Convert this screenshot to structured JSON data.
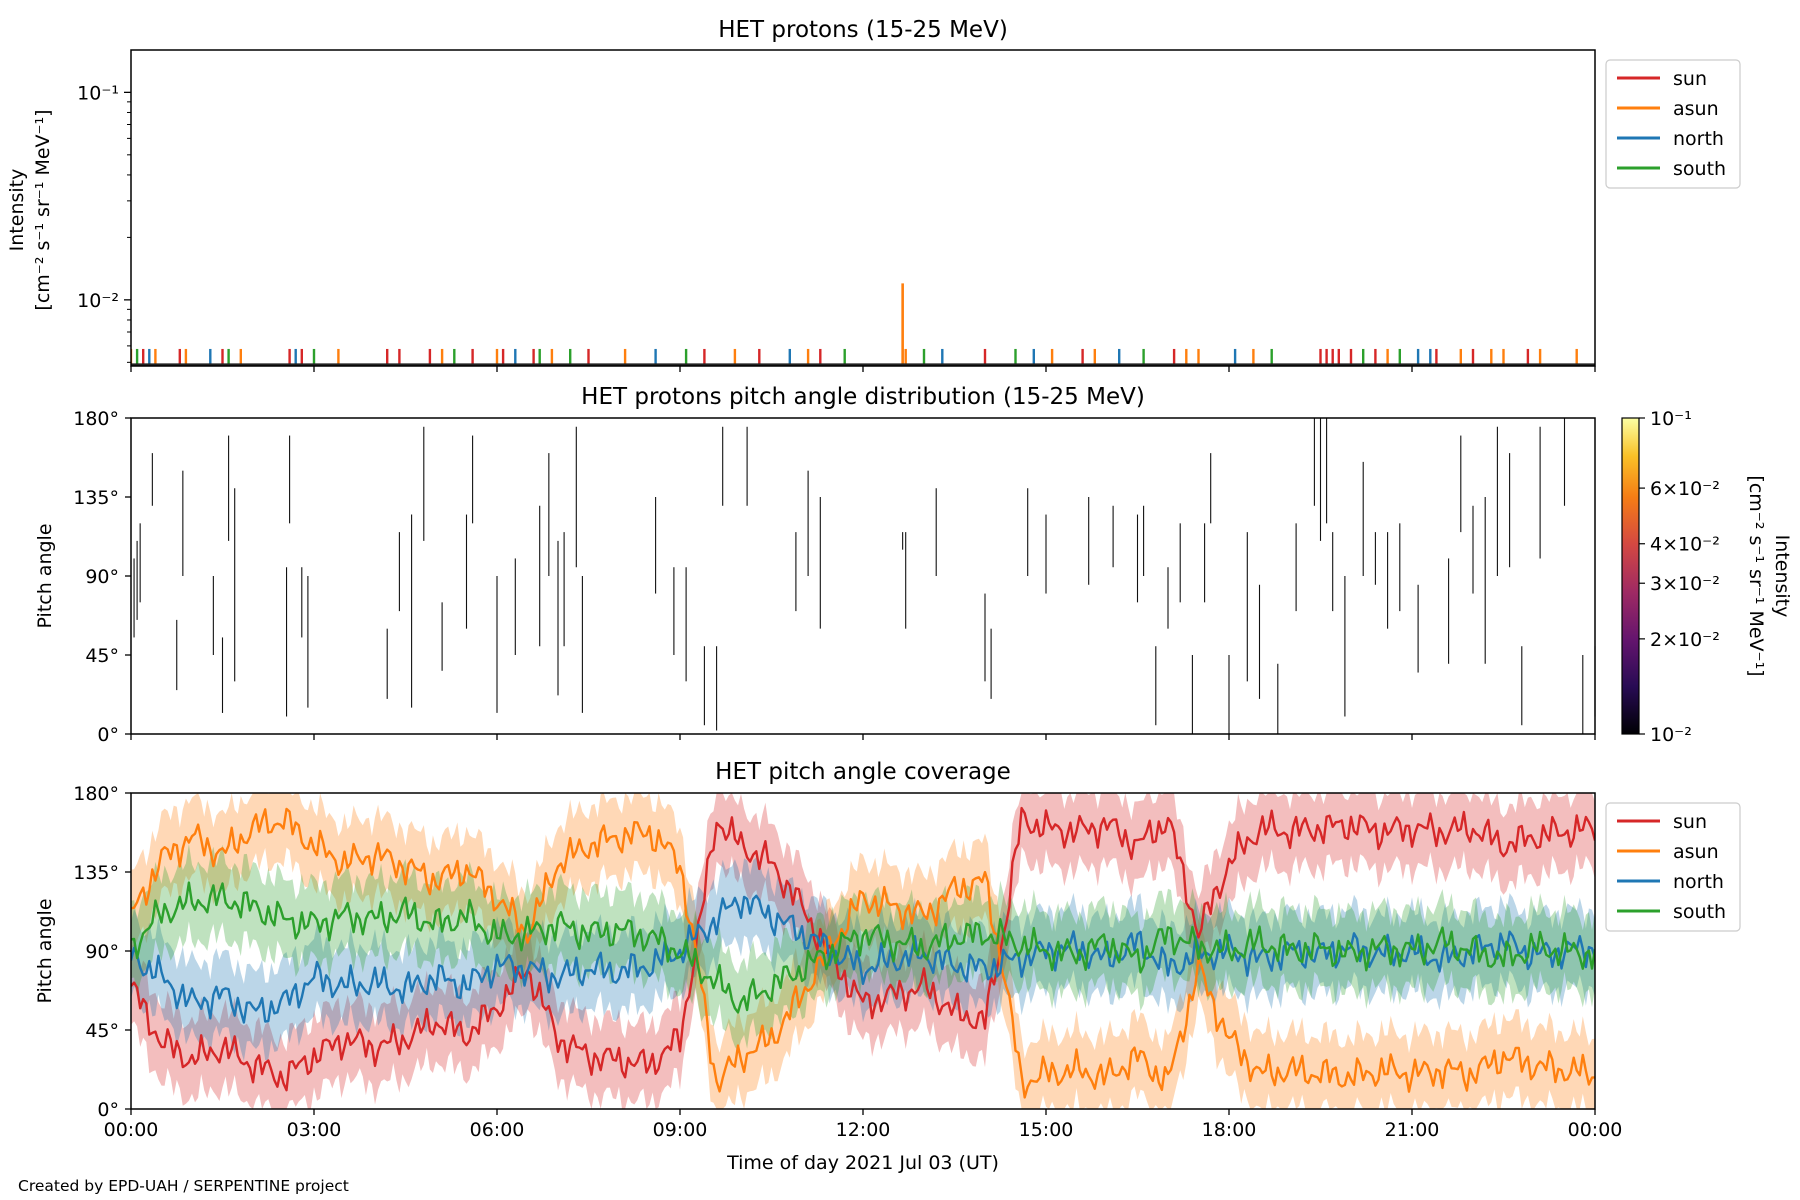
{
  "footer": {
    "credit": "Created by EPD-UAH / SERPENTINE project"
  },
  "colors": {
    "sun": "#d62728",
    "asun": "#ff7f0e",
    "north": "#1f77b4",
    "south": "#2ca02c"
  },
  "chart_data": [
    {
      "type": "line",
      "title": "HET protons (15-25 MeV)",
      "ylabel_line1": "Intensity",
      "ylabel_line2": "[cm⁻² s⁻¹ sr⁻¹ MeV⁻¹]",
      "yscale": "log",
      "ylim": [
        0.0048,
        0.16
      ],
      "ytick_labels": [
        "10⁻²",
        "10⁻¹"
      ],
      "ytick_values": [
        0.01,
        0.1
      ],
      "xlim_hours": [
        0,
        24
      ],
      "legend_position": "outside-right-top",
      "series": [
        {
          "name": "sun",
          "color": "#d62728"
        },
        {
          "name": "asun",
          "color": "#ff7f0e"
        },
        {
          "name": "north",
          "color": "#1f77b4"
        },
        {
          "name": "south",
          "color": "#2ca02c"
        }
      ],
      "spikes": {
        "baseline": 0.0058,
        "sun": [
          0.2,
          0.8,
          1.5,
          2.6,
          2.8,
          4.2,
          4.4,
          4.9,
          5.6,
          6.1,
          6.6,
          7.5,
          9.4,
          10.3,
          11.3,
          14.0,
          15.6,
          17.1,
          19.5,
          19.6,
          19.7,
          19.8,
          20.0,
          20.4,
          21.4,
          22.0,
          22.9
        ],
        "asun": [
          0.0,
          0.4,
          0.9,
          1.8,
          3.4,
          5.1,
          6.0,
          6.9,
          8.1,
          9.9,
          11.1,
          12.7,
          15.1,
          15.8,
          17.3,
          17.5,
          18.4,
          20.6,
          21.8,
          22.3,
          22.5,
          23.1,
          23.7
        ],
        "north": [
          0.3,
          1.3,
          2.7,
          6.3,
          8.6,
          10.8,
          13.3,
          14.8,
          16.2,
          18.1,
          21.1,
          21.3
        ],
        "south": [
          0.1,
          1.6,
          3.0,
          5.3,
          6.7,
          7.2,
          9.1,
          11.7,
          13.0,
          14.5,
          16.6,
          18.7,
          20.2,
          20.8
        ],
        "peak": {
          "series": "asun",
          "x_hour": 12.65,
          "value": 0.012
        }
      }
    },
    {
      "type": "heatmap",
      "title": "HET protons pitch angle distribution (15-25 MeV)",
      "ylabel": "Pitch angle",
      "ylim": [
        0,
        180
      ],
      "ytick_labels": [
        "0°",
        "45°",
        "90°",
        "135°",
        "180°"
      ],
      "ytick_values": [
        0,
        45,
        90,
        135,
        180
      ],
      "xlim_hours": [
        0,
        24
      ],
      "colorbar": {
        "label_line1": "Intensity",
        "label_line2": "[cm⁻² s⁻¹ sr⁻¹ MeV⁻¹]",
        "scale": "log",
        "range": [
          0.01,
          0.1
        ],
        "tick_labels": [
          "10⁻²",
          "2×10⁻²",
          "3×10⁻²",
          "4×10⁻²",
          "6×10⁻²",
          "10⁻¹"
        ],
        "tick_values": [
          0.01,
          0.02,
          0.03,
          0.04,
          0.06,
          0.1
        ],
        "colormap": "inferno"
      },
      "segments": [
        [
          0.05,
          55,
          100
        ],
        [
          0.1,
          65,
          110
        ],
        [
          0.15,
          75,
          120
        ],
        [
          0.35,
          130,
          160
        ],
        [
          0.75,
          25,
          65
        ],
        [
          0.85,
          90,
          150
        ],
        [
          1.35,
          45,
          90
        ],
        [
          1.5,
          12,
          55
        ],
        [
          1.6,
          110,
          170
        ],
        [
          1.7,
          30,
          140
        ],
        [
          2.55,
          10,
          95
        ],
        [
          2.6,
          120,
          170
        ],
        [
          2.8,
          55,
          95
        ],
        [
          2.9,
          15,
          90
        ],
        [
          4.2,
          20,
          60
        ],
        [
          4.4,
          70,
          115
        ],
        [
          4.6,
          15,
          125
        ],
        [
          4.8,
          110,
          175
        ],
        [
          5.1,
          36,
          75
        ],
        [
          5.5,
          60,
          125
        ],
        [
          5.6,
          120,
          170
        ],
        [
          6.0,
          12,
          90
        ],
        [
          6.3,
          45,
          100
        ],
        [
          6.7,
          50,
          130
        ],
        [
          6.85,
          90,
          160
        ],
        [
          7.0,
          22,
          110
        ],
        [
          7.1,
          50,
          115
        ],
        [
          7.3,
          95,
          175
        ],
        [
          7.4,
          12,
          90
        ],
        [
          8.6,
          80,
          135
        ],
        [
          8.9,
          45,
          95
        ],
        [
          9.1,
          30,
          95
        ],
        [
          9.4,
          5,
          50
        ],
        [
          9.6,
          2,
          50
        ],
        [
          9.7,
          130,
          175
        ],
        [
          10.1,
          130,
          175
        ],
        [
          10.9,
          70,
          115
        ],
        [
          11.1,
          90,
          150
        ],
        [
          11.3,
          60,
          135
        ],
        [
          12.7,
          60,
          115
        ],
        [
          12.65,
          105,
          115
        ],
        [
          13.2,
          90,
          140
        ],
        [
          14.0,
          30,
          80
        ],
        [
          14.1,
          20,
          60
        ],
        [
          14.7,
          90,
          140
        ],
        [
          15.0,
          80,
          125
        ],
        [
          15.7,
          85,
          135
        ],
        [
          16.1,
          95,
          130
        ],
        [
          16.5,
          75,
          125
        ],
        [
          16.6,
          90,
          130
        ],
        [
          16.8,
          5,
          50
        ],
        [
          17.0,
          60,
          95
        ],
        [
          17.2,
          75,
          120
        ],
        [
          17.4,
          0,
          45
        ],
        [
          17.6,
          75,
          120
        ],
        [
          17.7,
          120,
          160
        ],
        [
          18.0,
          0,
          45
        ],
        [
          18.3,
          30,
          115
        ],
        [
          18.5,
          20,
          85
        ],
        [
          18.8,
          0,
          40
        ],
        [
          19.1,
          70,
          120
        ],
        [
          19.4,
          130,
          180
        ],
        [
          19.5,
          110,
          180
        ],
        [
          19.6,
          120,
          180
        ],
        [
          19.7,
          70,
          115
        ],
        [
          19.9,
          10,
          90
        ],
        [
          20.2,
          90,
          155
        ],
        [
          20.4,
          85,
          115
        ],
        [
          20.6,
          60,
          115
        ],
        [
          20.8,
          70,
          120
        ],
        [
          21.1,
          35,
          85
        ],
        [
          21.6,
          40,
          100
        ],
        [
          21.8,
          115,
          170
        ],
        [
          22.0,
          80,
          130
        ],
        [
          22.2,
          40,
          135
        ],
        [
          22.4,
          90,
          175
        ],
        [
          22.6,
          95,
          160
        ],
        [
          22.8,
          5,
          50
        ],
        [
          23.1,
          100,
          175
        ],
        [
          23.5,
          130,
          180
        ],
        [
          23.8,
          0,
          45
        ],
        [
          24.0,
          10,
          50
        ]
      ]
    },
    {
      "type": "line",
      "title": "HET pitch angle coverage",
      "ylabel": "Pitch angle",
      "xlabel": "Time of day 2021 Jul 03 (UT)",
      "ylim": [
        0,
        180
      ],
      "ytick_labels": [
        "0°",
        "45°",
        "90°",
        "135°",
        "180°"
      ],
      "ytick_values": [
        0,
        45,
        90,
        135,
        180
      ],
      "xlim_hours": [
        0,
        24
      ],
      "xtick_labels": [
        "00:00",
        "03:00",
        "06:00",
        "09:00",
        "12:00",
        "15:00",
        "18:00",
        "21:00",
        "00:00"
      ],
      "xtick_hours": [
        0,
        3,
        6,
        9,
        12,
        15,
        18,
        21,
        24
      ],
      "legend_position": "outside-right-top",
      "band_half_width_deg": 22,
      "series": [
        {
          "name": "sun",
          "color": "#d62728",
          "hours": [
            0,
            0.5,
            1,
            1.5,
            2,
            2.5,
            3,
            3.5,
            4,
            4.5,
            5,
            5.5,
            6,
            6.5,
            7,
            7.5,
            8,
            8.5,
            9,
            9.3,
            9.6,
            10,
            10.5,
            11,
            11.5,
            12,
            12.5,
            13,
            13.5,
            14,
            14.3,
            14.6,
            15,
            15.5,
            16,
            16.5,
            17,
            17.5,
            18,
            18.5,
            19,
            19.5,
            20,
            20.5,
            21,
            21.5,
            22,
            22.5,
            23,
            23.5,
            24
          ],
          "values": [
            70,
            38,
            28,
            35,
            25,
            18,
            30,
            40,
            35,
            40,
            50,
            42,
            58,
            80,
            40,
            30,
            28,
            25,
            40,
            100,
            165,
            150,
            140,
            115,
            85,
            60,
            65,
            70,
            55,
            50,
            100,
            165,
            160,
            158,
            162,
            150,
            165,
            100,
            140,
            160,
            158,
            160,
            162,
            158,
            160,
            158,
            160,
            150,
            155,
            158,
            160
          ]
        },
        {
          "name": "asun",
          "color": "#ff7f0e",
          "hours": [
            0,
            0.5,
            1,
            1.5,
            2,
            2.5,
            3,
            3.5,
            4,
            4.5,
            5,
            5.5,
            6,
            6.5,
            7,
            7.5,
            8,
            8.5,
            9,
            9.3,
            9.6,
            10,
            10.5,
            11,
            11.5,
            12,
            12.5,
            13,
            13.5,
            14,
            14.3,
            14.6,
            15,
            15.5,
            16,
            16.5,
            17,
            17.5,
            18,
            18.5,
            19,
            19.5,
            20,
            20.5,
            21,
            21.5,
            22,
            22.5,
            23,
            23.5,
            24
          ],
          "values": [
            110,
            142,
            155,
            145,
            160,
            165,
            150,
            140,
            145,
            138,
            130,
            137,
            120,
            100,
            140,
            150,
            155,
            158,
            140,
            80,
            15,
            30,
            40,
            65,
            95,
            120,
            115,
            110,
            125,
            130,
            80,
            15,
            20,
            22,
            18,
            30,
            15,
            80,
            40,
            20,
            22,
            20,
            18,
            22,
            20,
            22,
            20,
            30,
            25,
            22,
            20
          ]
        },
        {
          "name": "north",
          "color": "#1f77b4",
          "hours": [
            0,
            0.5,
            1,
            1.5,
            2,
            2.5,
            3,
            3.5,
            4,
            4.5,
            5,
            5.5,
            6,
            6.5,
            7,
            7.5,
            8,
            8.5,
            9,
            9.5,
            10,
            10.5,
            11,
            11.5,
            12,
            12.5,
            13,
            13.5,
            14,
            14.5,
            15,
            15.5,
            16,
            16.5,
            17,
            17.5,
            18,
            18.5,
            19,
            19.5,
            20,
            20.5,
            21,
            21.5,
            22,
            22.5,
            23,
            23.5,
            24
          ],
          "values": [
            88,
            75,
            60,
            65,
            55,
            60,
            75,
            70,
            72,
            68,
            75,
            70,
            82,
            80,
            75,
            80,
            78,
            82,
            90,
            105,
            120,
            110,
            100,
            90,
            80,
            85,
            88,
            82,
            80,
            85,
            90,
            92,
            85,
            95,
            80,
            88,
            90,
            85,
            90,
            88,
            92,
            88,
            90,
            85,
            90,
            95,
            88,
            90,
            92
          ]
        },
        {
          "name": "south",
          "color": "#2ca02c",
          "hours": [
            0,
            0.5,
            1,
            1.5,
            2,
            2.5,
            3,
            3.5,
            4,
            4.5,
            5,
            5.5,
            6,
            6.5,
            7,
            7.5,
            8,
            8.5,
            9,
            9.5,
            10,
            10.5,
            11,
            11.5,
            12,
            12.5,
            13,
            13.5,
            14,
            14.5,
            15,
            15.5,
            16,
            16.5,
            17,
            17.5,
            18,
            18.5,
            19,
            19.5,
            20,
            20.5,
            21,
            21.5,
            22,
            22.5,
            23,
            23.5,
            24
          ],
          "values": [
            92,
            112,
            118,
            120,
            115,
            108,
            105,
            110,
            108,
            112,
            105,
            110,
            98,
            100,
            105,
            100,
            102,
            98,
            90,
            75,
            60,
            70,
            80,
            90,
            100,
            95,
            92,
            98,
            100,
            95,
            90,
            88,
            95,
            85,
            100,
            92,
            90,
            95,
            90,
            92,
            88,
            92,
            90,
            95,
            90,
            85,
            92,
            90,
            88
          ]
        }
      ]
    }
  ]
}
